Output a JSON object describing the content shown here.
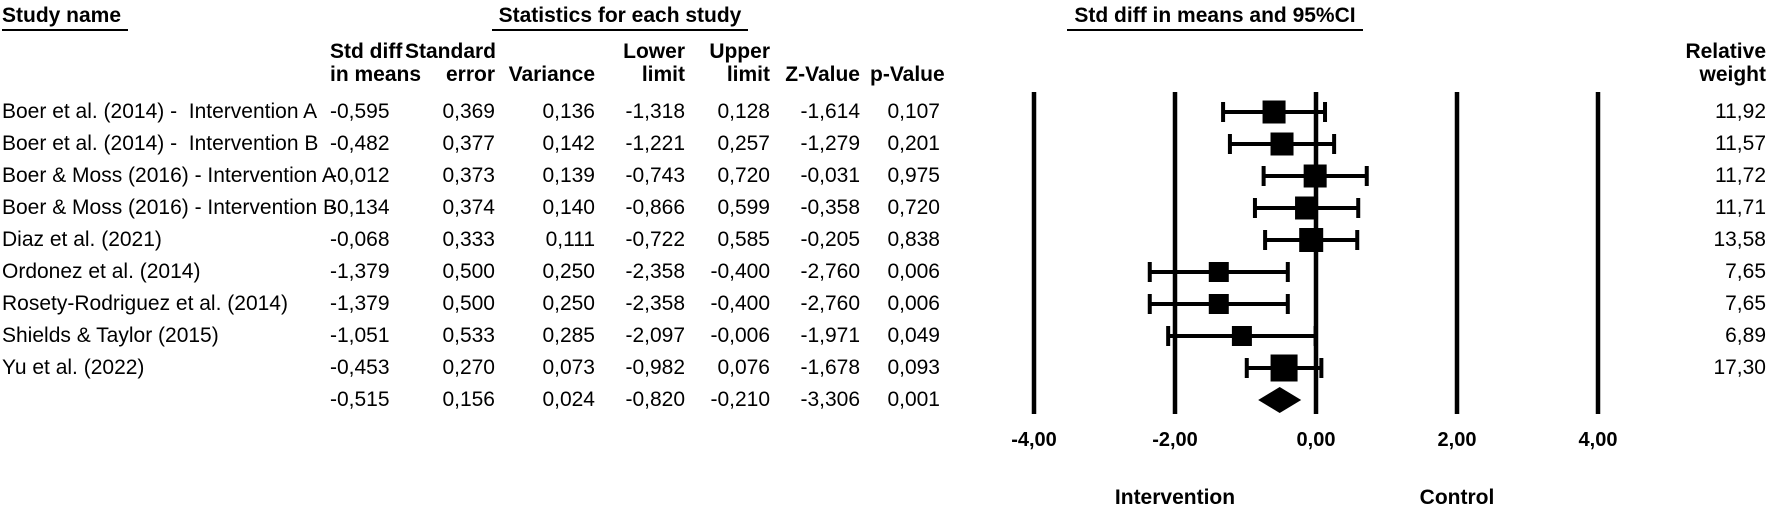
{
  "header": {
    "study_name_title": "Study name",
    "statistics_title": "Statistics for each study",
    "plot_title": "Std diff in means and 95%CI",
    "relative_weight_line1": "Relative",
    "relative_weight_line2": "weight",
    "columns": [
      {
        "line1": "Std diff",
        "line2": "in means"
      },
      {
        "line1": "Standard",
        "line2": "error"
      },
      {
        "line1": "",
        "line2": "Variance"
      },
      {
        "line1": "Lower",
        "line2": "limit"
      },
      {
        "line1": "Upper",
        "line2": "limit"
      },
      {
        "line1": "",
        "line2": "Z-Value"
      },
      {
        "line1": "",
        "line2": "p-Value"
      }
    ]
  },
  "rows": [
    {
      "study": "Boer et al. (2014) -  Intervention A",
      "std_diff": "-0,595",
      "std_err": "0,369",
      "variance": "0,136",
      "lower": "-1,318",
      "upper": "0,128",
      "z": "-1,614",
      "p": "0,107",
      "weight": "11,92"
    },
    {
      "study": "Boer et al. (2014) -  Intervention B",
      "std_diff": "-0,482",
      "std_err": "0,377",
      "variance": "0,142",
      "lower": "-1,221",
      "upper": "0,257",
      "z": "-1,279",
      "p": "0,201",
      "weight": "11,57"
    },
    {
      "study": "Boer & Moss (2016) - Intervention A",
      "std_diff": "-0,012",
      "std_err": "0,373",
      "variance": "0,139",
      "lower": "-0,743",
      "upper": "0,720",
      "z": "-0,031",
      "p": "0,975",
      "weight": "11,72"
    },
    {
      "study": "Boer & Moss (2016) - Intervention B",
      "std_diff": "-0,134",
      "std_err": "0,374",
      "variance": "0,140",
      "lower": "-0,866",
      "upper": "0,599",
      "z": "-0,358",
      "p": "0,720",
      "weight": "11,71"
    },
    {
      "study": "Diaz et al. (2021)",
      "std_diff": "-0,068",
      "std_err": "0,333",
      "variance": "0,111",
      "lower": "-0,722",
      "upper": "0,585",
      "z": "-0,205",
      "p": "0,838",
      "weight": "13,58"
    },
    {
      "study": "Ordonez et al. (2014)",
      "std_diff": "-1,379",
      "std_err": "0,500",
      "variance": "0,250",
      "lower": "-2,358",
      "upper": "-0,400",
      "z": "-2,760",
      "p": "0,006",
      "weight": "7,65"
    },
    {
      "study": "Rosety-Rodriguez et al. (2014)",
      "std_diff": "-1,379",
      "std_err": "0,500",
      "variance": "0,250",
      "lower": "-2,358",
      "upper": "-0,400",
      "z": "-2,760",
      "p": "0,006",
      "weight": "7,65"
    },
    {
      "study": "Shields & Taylor (2015)",
      "std_diff": "-1,051",
      "std_err": "0,533",
      "variance": "0,285",
      "lower": "-2,097",
      "upper": "-0,006",
      "z": "-1,971",
      "p": "0,049",
      "weight": "6,89"
    },
    {
      "study": "Yu et al. (2022)",
      "std_diff": "-0,453",
      "std_err": "0,270",
      "variance": "0,073",
      "lower": "-0,982",
      "upper": "0,076",
      "z": "-1,678",
      "p": "0,093",
      "weight": "17,30"
    },
    {
      "study": "",
      "std_diff": "-0,515",
      "std_err": "0,156",
      "variance": "0,024",
      "lower": "-0,820",
      "upper": "-0,210",
      "z": "-3,306",
      "p": "0,001",
      "weight": ""
    }
  ],
  "axis": {
    "tick_labels": [
      "-4,00",
      "-2,00",
      "0,00",
      "2,00",
      "4,00"
    ],
    "left_label": "Intervention",
    "right_label": "Control"
  },
  "colors": {
    "ink": "#000000",
    "background": "#ffffff"
  },
  "chart_data": {
    "type": "forest",
    "title": "Std diff in means and 95%CI",
    "effect_measure": "Std diff in means",
    "xlim": [
      -4,
      4
    ],
    "x_ticks": [
      -4,
      -2,
      0,
      2,
      4
    ],
    "x_tick_labels": [
      "-4,00",
      "-2,00",
      "0,00",
      "2,00",
      "4,00"
    ],
    "favours_left_label": "Intervention",
    "favours_right_label": "Control",
    "gridlines": true,
    "studies": [
      {
        "name": "Boer et al. (2014) -  Intervention A",
        "est": -0.595,
        "lo": -1.318,
        "hi": 0.128,
        "weight": 11.92
      },
      {
        "name": "Boer et al. (2014) -  Intervention B",
        "est": -0.482,
        "lo": -1.221,
        "hi": 0.257,
        "weight": 11.57
      },
      {
        "name": "Boer & Moss (2016) - Intervention A",
        "est": -0.012,
        "lo": -0.743,
        "hi": 0.72,
        "weight": 11.72
      },
      {
        "name": "Boer & Moss (2016) - Intervention B",
        "est": -0.134,
        "lo": -0.866,
        "hi": 0.599,
        "weight": 11.71
      },
      {
        "name": "Diaz et al. (2021)",
        "est": -0.068,
        "lo": -0.722,
        "hi": 0.585,
        "weight": 13.58
      },
      {
        "name": "Ordonez et al. (2014)",
        "est": -1.379,
        "lo": -2.358,
        "hi": -0.4,
        "weight": 7.65
      },
      {
        "name": "Rosety-Rodriguez et al. (2014)",
        "est": -1.379,
        "lo": -2.358,
        "hi": -0.4,
        "weight": 7.65
      },
      {
        "name": "Shields & Taylor (2015)",
        "est": -1.051,
        "lo": -2.097,
        "hi": -0.006,
        "weight": 6.89
      },
      {
        "name": "Yu et al. (2022)",
        "est": -0.453,
        "lo": -0.982,
        "hi": 0.076,
        "weight": 17.3
      }
    ],
    "summary": {
      "est": -0.515,
      "lo": -0.82,
      "hi": -0.21,
      "z": -3.306,
      "p": 0.001
    }
  }
}
